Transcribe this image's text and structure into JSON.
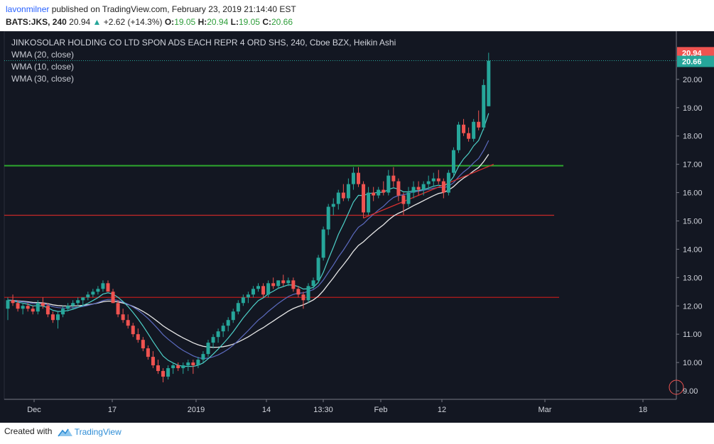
{
  "header": {
    "author": "lavonmilner",
    "published_text": " published on TradingView.com, February 23, 2019 21:14:40 EST",
    "symbol": "BATS:JKS, 240",
    "last": "20.94",
    "change": "+2.62 (+14.3%)",
    "o_label": "O:",
    "o_value": "19.05",
    "h_label": "H:",
    "h_value": "20.94",
    "l_label": "L:",
    "l_value": "19.05",
    "c_label": "C:",
    "c_value": "20.66"
  },
  "legend": {
    "title": "JINKOSOLAR HOLDING CO LTD SPON ADS EACH REPR 4 ORD SHS, 240, Cboe BZX, Heikin Ashi",
    "indicators": [
      "WMA (20, close)",
      "WMA (10, close)",
      "WMA (30, close)"
    ]
  },
  "price_labels": {
    "high": "20.94",
    "close": "20.66"
  },
  "footer": {
    "created_with": "Created with",
    "brand": "TradingView"
  },
  "colors": {
    "background": "#131722",
    "bull": "#26a69a",
    "bear": "#ef5350",
    "wma10": "#4dd0c8",
    "wma20": "#5c6bc0",
    "wma30": "#e8e8e8",
    "resistance": "#2ea82e",
    "support": "#c62828",
    "trendline": "#d32f2f"
  },
  "chart_data": {
    "type": "candlestick",
    "style": "Heikin Ashi",
    "interval": "240",
    "ylim": [
      8.7,
      21.7
    ],
    "y_ticks": [
      9,
      10,
      11,
      12,
      13,
      14,
      15,
      16,
      17,
      18,
      19,
      20
    ],
    "y_tick_labels": [
      "9.00",
      "10.00",
      "11.00",
      "12.00",
      "13.00",
      "14.00",
      "15.00",
      "16.00",
      "17.00",
      "18.00",
      "19.00",
      "20.00"
    ],
    "x_tick_labels": [
      "Dec",
      "17",
      "2019",
      "14",
      "13:30",
      "Feb",
      "12",
      "Mar",
      "18"
    ],
    "candles": [
      [
        11.9,
        12.3,
        11.5,
        12.2
      ],
      [
        12.2,
        12.4,
        12.0,
        12.1
      ],
      [
        12.1,
        12.2,
        11.8,
        11.9
      ],
      [
        11.9,
        12.1,
        11.7,
        12.0
      ],
      [
        12.0,
        12.1,
        11.8,
        11.9
      ],
      [
        11.9,
        12.0,
        11.7,
        11.8
      ],
      [
        11.8,
        12.2,
        11.7,
        12.1
      ],
      [
        12.1,
        12.3,
        11.9,
        12.0
      ],
      [
        12.0,
        12.1,
        11.6,
        11.7
      ],
      [
        11.7,
        11.8,
        11.4,
        11.5
      ],
      [
        11.5,
        11.8,
        11.2,
        11.7
      ],
      [
        11.7,
        12.0,
        11.6,
        11.9
      ],
      [
        11.9,
        12.1,
        11.8,
        12.0
      ],
      [
        12.0,
        12.2,
        11.9,
        12.1
      ],
      [
        12.1,
        12.3,
        12.0,
        12.2
      ],
      [
        12.2,
        12.3,
        12.0,
        12.3
      ],
      [
        12.3,
        12.5,
        12.2,
        12.4
      ],
      [
        12.4,
        12.6,
        12.3,
        12.5
      ],
      [
        12.5,
        12.7,
        12.4,
        12.6
      ],
      [
        12.6,
        12.9,
        12.5,
        12.8
      ],
      [
        12.8,
        12.9,
        12.5,
        12.5
      ],
      [
        12.5,
        12.6,
        12.1,
        12.1
      ],
      [
        12.1,
        12.2,
        11.6,
        11.7
      ],
      [
        11.7,
        11.9,
        11.4,
        11.5
      ],
      [
        11.5,
        11.7,
        11.2,
        11.3
      ],
      [
        11.3,
        11.4,
        10.9,
        11.0
      ],
      [
        11.0,
        11.2,
        10.7,
        10.8
      ],
      [
        10.8,
        10.9,
        10.4,
        10.5
      ],
      [
        10.5,
        10.6,
        10.1,
        10.2
      ],
      [
        10.2,
        10.4,
        9.8,
        9.9
      ],
      [
        9.9,
        10.1,
        9.6,
        9.7
      ],
      [
        9.7,
        9.8,
        9.3,
        9.5
      ],
      [
        9.5,
        9.9,
        9.4,
        9.8
      ],
      [
        9.8,
        10.0,
        9.6,
        9.9
      ],
      [
        9.9,
        10.0,
        9.7,
        9.8
      ],
      [
        9.8,
        10.0,
        9.6,
        9.9
      ],
      [
        9.9,
        10.1,
        9.7,
        10.0
      ],
      [
        10.0,
        10.1,
        9.6,
        9.9
      ],
      [
        9.9,
        10.2,
        9.8,
        10.1
      ],
      [
        10.1,
        10.4,
        10.0,
        10.3
      ],
      [
        10.3,
        10.8,
        10.2,
        10.7
      ],
      [
        10.7,
        11.0,
        10.5,
        10.9
      ],
      [
        10.9,
        11.2,
        10.7,
        11.1
      ],
      [
        11.1,
        11.4,
        10.9,
        11.3
      ],
      [
        11.3,
        11.6,
        11.1,
        11.5
      ],
      [
        11.5,
        11.9,
        11.4,
        11.8
      ],
      [
        11.8,
        12.2,
        11.7,
        12.1
      ],
      [
        12.1,
        12.4,
        12.0,
        12.3
      ],
      [
        12.3,
        12.5,
        12.1,
        12.4
      ],
      [
        12.4,
        12.7,
        12.3,
        12.6
      ],
      [
        12.6,
        12.8,
        12.5,
        12.7
      ],
      [
        12.7,
        12.8,
        12.3,
        12.4
      ],
      [
        12.4,
        12.9,
        12.3,
        12.8
      ],
      [
        12.8,
        13.0,
        12.6,
        12.7
      ],
      [
        12.7,
        12.9,
        12.6,
        12.9
      ],
      [
        12.9,
        13.1,
        12.7,
        12.8
      ],
      [
        12.8,
        13.0,
        12.7,
        12.9
      ],
      [
        12.9,
        13.0,
        12.5,
        12.6
      ],
      [
        12.6,
        12.7,
        12.3,
        12.4
      ],
      [
        12.4,
        12.5,
        11.9,
        12.2
      ],
      [
        12.2,
        12.8,
        12.1,
        12.7
      ],
      [
        12.7,
        13.0,
        12.6,
        12.9
      ],
      [
        12.9,
        13.8,
        12.8,
        13.7
      ],
      [
        13.7,
        14.8,
        13.6,
        14.7
      ],
      [
        14.7,
        15.6,
        14.5,
        15.5
      ],
      [
        15.5,
        15.8,
        15.2,
        15.6
      ],
      [
        15.6,
        16.1,
        15.4,
        16.0
      ],
      [
        16.0,
        16.3,
        15.7,
        15.8
      ],
      [
        15.8,
        16.5,
        15.7,
        16.3
      ],
      [
        16.3,
        16.9,
        16.1,
        16.7
      ],
      [
        16.7,
        16.9,
        16.2,
        16.3
      ],
      [
        16.3,
        16.4,
        15.1,
        15.3
      ],
      [
        15.3,
        16.2,
        15.2,
        16.0
      ],
      [
        16.0,
        16.2,
        15.7,
        15.9
      ],
      [
        15.9,
        16.2,
        15.8,
        16.1
      ],
      [
        16.1,
        16.4,
        15.9,
        16.0
      ],
      [
        16.0,
        16.8,
        15.9,
        16.6
      ],
      [
        16.6,
        16.9,
        16.2,
        16.4
      ],
      [
        16.4,
        16.5,
        15.7,
        15.9
      ],
      [
        15.9,
        16.0,
        15.2,
        15.6
      ],
      [
        15.6,
        16.2,
        15.5,
        16.0
      ],
      [
        16.0,
        16.4,
        15.8,
        16.2
      ],
      [
        16.2,
        16.4,
        15.9,
        16.1
      ],
      [
        16.1,
        16.4,
        15.9,
        16.3
      ],
      [
        16.3,
        16.6,
        16.1,
        16.4
      ],
      [
        16.4,
        16.7,
        16.2,
        16.5
      ],
      [
        16.5,
        16.8,
        16.3,
        16.4
      ],
      [
        16.4,
        16.5,
        15.8,
        16.0
      ],
      [
        16.0,
        16.8,
        15.9,
        16.7
      ],
      [
        16.7,
        17.6,
        16.6,
        17.5
      ],
      [
        17.5,
        18.5,
        17.4,
        18.4
      ],
      [
        18.4,
        18.6,
        18.0,
        18.1
      ],
      [
        18.1,
        18.3,
        17.8,
        17.9
      ],
      [
        17.9,
        18.6,
        17.8,
        18.5
      ],
      [
        18.5,
        18.9,
        18.2,
        18.3
      ],
      [
        18.3,
        20.0,
        18.2,
        19.8
      ],
      [
        19.05,
        20.94,
        19.05,
        20.66
      ]
    ],
    "horizontal_lines": [
      {
        "name": "resistance",
        "value": 16.95
      },
      {
        "name": "support",
        "value": 15.2
      },
      {
        "name": "support-low",
        "value": 12.3
      }
    ],
    "trendline": {
      "from": [
        71,
        15.1
      ],
      "to": [
        97,
        17.0
      ]
    }
  }
}
